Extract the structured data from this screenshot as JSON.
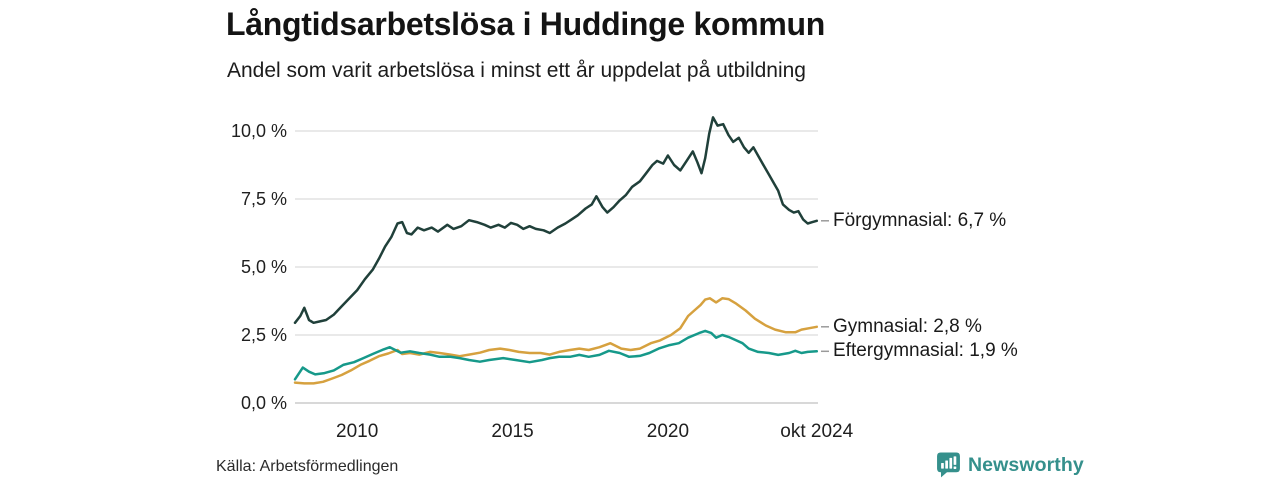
{
  "header": {
    "title": "Långtidsarbetslösa i Huddinge kommun",
    "subtitle": "Andel som varit arbetslösa i minst ett år uppdelat på utbildning"
  },
  "footer": {
    "source": "Källa: Arbetsförmedlingen",
    "brand": "Newsworthy",
    "brand_color": "#35908c"
  },
  "chart_data": {
    "type": "line",
    "title": "Långtidsarbetslösa i Huddinge kommun",
    "subtitle": "Andel som varit arbetslösa i minst ett år uppdelat på utbildning",
    "x_domain": [
      2008,
      2024.83
    ],
    "y_domain": [
      0,
      10
    ],
    "grid": true,
    "gridline_color": "#e2e2e2",
    "zeroline_color": "#cccccc",
    "leader_color": "#9a9a9a",
    "y_ticks": [
      {
        "label": "0,0 %",
        "value": 0
      },
      {
        "label": "2,5 %",
        "value": 2.5
      },
      {
        "label": "5,0 %",
        "value": 5
      },
      {
        "label": "7,5 %",
        "value": 7.5
      },
      {
        "label": "10,0 %",
        "value": 10
      }
    ],
    "x_ticks": [
      {
        "label": "2010",
        "value": 2010
      },
      {
        "label": "2015",
        "value": 2015
      },
      {
        "label": "2020",
        "value": 2020
      },
      {
        "label": "okt 2024",
        "value": 2024.79
      }
    ],
    "series": [
      {
        "id": "forgymnasial",
        "name": "Förgymnasial",
        "annotation": "Förgymnasial: 6,7 %",
        "last_value": 6.7,
        "color": "#20403a",
        "points": [
          [
            2008.0,
            2.95
          ],
          [
            2008.17,
            3.2
          ],
          [
            2008.3,
            3.5
          ],
          [
            2008.45,
            3.05
          ],
          [
            2008.6,
            2.95
          ],
          [
            2008.8,
            3.0
          ],
          [
            2009.0,
            3.05
          ],
          [
            2009.25,
            3.25
          ],
          [
            2009.5,
            3.55
          ],
          [
            2009.75,
            3.85
          ],
          [
            2010.0,
            4.15
          ],
          [
            2010.25,
            4.55
          ],
          [
            2010.5,
            4.9
          ],
          [
            2010.7,
            5.3
          ],
          [
            2010.9,
            5.75
          ],
          [
            2011.1,
            6.1
          ],
          [
            2011.3,
            6.6
          ],
          [
            2011.45,
            6.65
          ],
          [
            2011.6,
            6.25
          ],
          [
            2011.75,
            6.2
          ],
          [
            2011.95,
            6.45
          ],
          [
            2012.15,
            6.35
          ],
          [
            2012.4,
            6.45
          ],
          [
            2012.6,
            6.3
          ],
          [
            2012.9,
            6.55
          ],
          [
            2013.1,
            6.4
          ],
          [
            2013.35,
            6.5
          ],
          [
            2013.6,
            6.72
          ],
          [
            2013.85,
            6.65
          ],
          [
            2014.1,
            6.55
          ],
          [
            2014.3,
            6.45
          ],
          [
            2014.55,
            6.55
          ],
          [
            2014.75,
            6.45
          ],
          [
            2014.95,
            6.62
          ],
          [
            2015.15,
            6.55
          ],
          [
            2015.35,
            6.4
          ],
          [
            2015.55,
            6.5
          ],
          [
            2015.75,
            6.4
          ],
          [
            2016.0,
            6.35
          ],
          [
            2016.2,
            6.25
          ],
          [
            2016.45,
            6.45
          ],
          [
            2016.7,
            6.6
          ],
          [
            2016.9,
            6.75
          ],
          [
            2017.1,
            6.9
          ],
          [
            2017.35,
            7.15
          ],
          [
            2017.55,
            7.3
          ],
          [
            2017.7,
            7.6
          ],
          [
            2017.9,
            7.2
          ],
          [
            2018.05,
            7.0
          ],
          [
            2018.25,
            7.2
          ],
          [
            2018.45,
            7.45
          ],
          [
            2018.65,
            7.65
          ],
          [
            2018.85,
            7.95
          ],
          [
            2019.1,
            8.15
          ],
          [
            2019.3,
            8.45
          ],
          [
            2019.5,
            8.75
          ],
          [
            2019.65,
            8.9
          ],
          [
            2019.85,
            8.8
          ],
          [
            2020.0,
            9.1
          ],
          [
            2020.2,
            8.75
          ],
          [
            2020.4,
            8.55
          ],
          [
            2020.6,
            8.9
          ],
          [
            2020.8,
            9.25
          ],
          [
            2020.95,
            8.85
          ],
          [
            2021.08,
            8.45
          ],
          [
            2021.2,
            9.0
          ],
          [
            2021.33,
            9.9
          ],
          [
            2021.45,
            10.5
          ],
          [
            2021.6,
            10.2
          ],
          [
            2021.78,
            10.25
          ],
          [
            2021.95,
            9.85
          ],
          [
            2022.1,
            9.6
          ],
          [
            2022.28,
            9.75
          ],
          [
            2022.45,
            9.4
          ],
          [
            2022.6,
            9.2
          ],
          [
            2022.75,
            9.4
          ],
          [
            2022.9,
            9.1
          ],
          [
            2023.1,
            8.7
          ],
          [
            2023.25,
            8.4
          ],
          [
            2023.4,
            8.1
          ],
          [
            2023.55,
            7.8
          ],
          [
            2023.7,
            7.3
          ],
          [
            2023.9,
            7.1
          ],
          [
            2024.05,
            7.0
          ],
          [
            2024.2,
            7.05
          ],
          [
            2024.35,
            6.75
          ],
          [
            2024.5,
            6.6
          ],
          [
            2024.65,
            6.65
          ],
          [
            2024.79,
            6.7
          ]
        ]
      },
      {
        "id": "gymnasial",
        "name": "Gymnasial",
        "annotation": "Gymnasial: 2,8 %",
        "last_value": 2.8,
        "color": "#d6a13f",
        "points": [
          [
            2008.0,
            0.75
          ],
          [
            2008.3,
            0.72
          ],
          [
            2008.6,
            0.72
          ],
          [
            2008.9,
            0.78
          ],
          [
            2009.2,
            0.9
          ],
          [
            2009.5,
            1.03
          ],
          [
            2009.8,
            1.2
          ],
          [
            2010.1,
            1.4
          ],
          [
            2010.4,
            1.55
          ],
          [
            2010.7,
            1.72
          ],
          [
            2011.0,
            1.82
          ],
          [
            2011.3,
            1.95
          ],
          [
            2011.45,
            1.8
          ],
          [
            2011.7,
            1.84
          ],
          [
            2012.0,
            1.78
          ],
          [
            2012.35,
            1.88
          ],
          [
            2012.65,
            1.84
          ],
          [
            2013.0,
            1.78
          ],
          [
            2013.3,
            1.72
          ],
          [
            2013.6,
            1.78
          ],
          [
            2013.95,
            1.85
          ],
          [
            2014.25,
            1.95
          ],
          [
            2014.6,
            2.0
          ],
          [
            2014.9,
            1.95
          ],
          [
            2015.2,
            1.88
          ],
          [
            2015.55,
            1.84
          ],
          [
            2015.9,
            1.84
          ],
          [
            2016.2,
            1.78
          ],
          [
            2016.5,
            1.88
          ],
          [
            2016.85,
            1.95
          ],
          [
            2017.15,
            2.0
          ],
          [
            2017.45,
            1.95
          ],
          [
            2017.8,
            2.05
          ],
          [
            2018.15,
            2.2
          ],
          [
            2018.5,
            2.0
          ],
          [
            2018.8,
            1.95
          ],
          [
            2019.1,
            2.0
          ],
          [
            2019.45,
            2.2
          ],
          [
            2019.75,
            2.3
          ],
          [
            2020.1,
            2.5
          ],
          [
            2020.4,
            2.75
          ],
          [
            2020.65,
            3.2
          ],
          [
            2020.85,
            3.4
          ],
          [
            2021.05,
            3.6
          ],
          [
            2021.2,
            3.8
          ],
          [
            2021.35,
            3.85
          ],
          [
            2021.55,
            3.7
          ],
          [
            2021.75,
            3.85
          ],
          [
            2021.95,
            3.82
          ],
          [
            2022.2,
            3.65
          ],
          [
            2022.5,
            3.4
          ],
          [
            2022.8,
            3.1
          ],
          [
            2023.15,
            2.85
          ],
          [
            2023.45,
            2.7
          ],
          [
            2023.8,
            2.6
          ],
          [
            2024.1,
            2.6
          ],
          [
            2024.3,
            2.7
          ],
          [
            2024.55,
            2.75
          ],
          [
            2024.79,
            2.8
          ]
        ]
      },
      {
        "id": "eftergymnasial",
        "name": "Eftergymnasial",
        "annotation": "Eftergymnasial: 1,9 %",
        "last_value": 1.9,
        "color": "#16998a",
        "points": [
          [
            2008.0,
            0.87
          ],
          [
            2008.25,
            1.3
          ],
          [
            2008.45,
            1.15
          ],
          [
            2008.65,
            1.05
          ],
          [
            2008.95,
            1.1
          ],
          [
            2009.25,
            1.2
          ],
          [
            2009.55,
            1.4
          ],
          [
            2009.9,
            1.5
          ],
          [
            2010.2,
            1.65
          ],
          [
            2010.5,
            1.8
          ],
          [
            2010.85,
            1.97
          ],
          [
            2011.05,
            2.05
          ],
          [
            2011.4,
            1.85
          ],
          [
            2011.7,
            1.9
          ],
          [
            2012.0,
            1.84
          ],
          [
            2012.35,
            1.78
          ],
          [
            2012.65,
            1.7
          ],
          [
            2013.0,
            1.7
          ],
          [
            2013.3,
            1.65
          ],
          [
            2013.6,
            1.58
          ],
          [
            2013.95,
            1.52
          ],
          [
            2014.25,
            1.58
          ],
          [
            2014.7,
            1.65
          ],
          [
            2015.1,
            1.58
          ],
          [
            2015.55,
            1.5
          ],
          [
            2015.95,
            1.58
          ],
          [
            2016.2,
            1.65
          ],
          [
            2016.5,
            1.7
          ],
          [
            2016.85,
            1.7
          ],
          [
            2017.15,
            1.77
          ],
          [
            2017.45,
            1.7
          ],
          [
            2017.8,
            1.77
          ],
          [
            2018.1,
            1.92
          ],
          [
            2018.45,
            1.84
          ],
          [
            2018.75,
            1.7
          ],
          [
            2019.1,
            1.73
          ],
          [
            2019.4,
            1.84
          ],
          [
            2019.7,
            2.0
          ],
          [
            2020.05,
            2.13
          ],
          [
            2020.35,
            2.2
          ],
          [
            2020.65,
            2.4
          ],
          [
            2021.0,
            2.57
          ],
          [
            2021.2,
            2.65
          ],
          [
            2021.4,
            2.57
          ],
          [
            2021.55,
            2.4
          ],
          [
            2021.75,
            2.5
          ],
          [
            2021.95,
            2.43
          ],
          [
            2022.2,
            2.3
          ],
          [
            2022.4,
            2.2
          ],
          [
            2022.6,
            2.0
          ],
          [
            2022.9,
            1.88
          ],
          [
            2023.25,
            1.84
          ],
          [
            2023.55,
            1.77
          ],
          [
            2023.9,
            1.84
          ],
          [
            2024.1,
            1.92
          ],
          [
            2024.3,
            1.84
          ],
          [
            2024.5,
            1.88
          ],
          [
            2024.79,
            1.9
          ]
        ]
      }
    ]
  }
}
